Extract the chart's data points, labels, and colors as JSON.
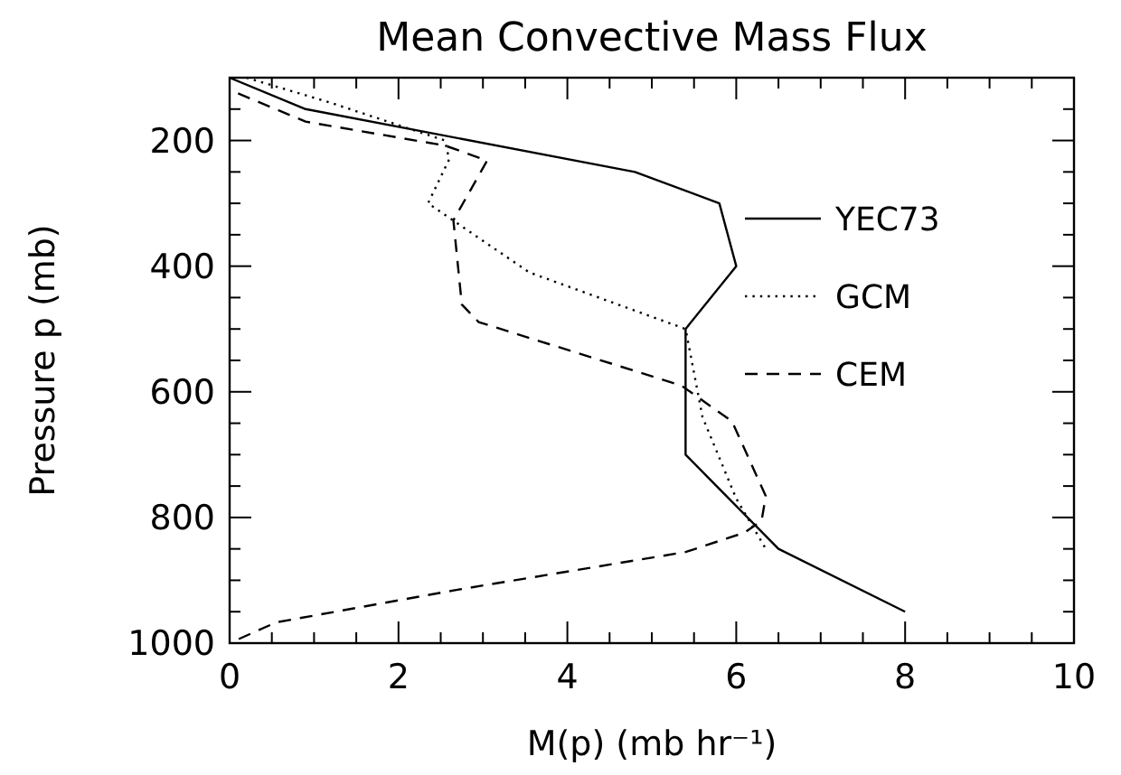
{
  "chart_data": {
    "type": "line",
    "title": "Mean Convective Mass Flux",
    "xlabel": "M(p) (mb hr⁻¹)",
    "ylabel": "Pressure p (mb)",
    "xlim": [
      0,
      10
    ],
    "ylim": [
      1000,
      100
    ],
    "xticks": [
      0,
      {
        "value": 0.5,
        "label": null
      },
      {
        "value": 1,
        "label": null
      },
      {
        "value": 1.5,
        "label": null
      },
      2,
      {
        "value": 2.5,
        "label": null
      },
      {
        "value": 3,
        "label": null
      },
      {
        "value": 3.5,
        "label": null
      },
      4,
      {
        "value": 4.5,
        "label": null
      },
      {
        "value": 5,
        "label": null
      },
      {
        "value": 5.5,
        "label": null
      },
      6,
      {
        "value": 6.5,
        "label": null
      },
      {
        "value": 7,
        "label": null
      },
      {
        "value": 7.5,
        "label": null
      },
      8,
      {
        "value": 8.5,
        "label": null
      },
      {
        "value": 9,
        "label": null
      },
      {
        "value": 9.5,
        "label": null
      },
      10
    ],
    "yticks": [
      {
        "value": 100,
        "label": null
      },
      {
        "value": 150,
        "label": null
      },
      200,
      {
        "value": 250,
        "label": null
      },
      {
        "value": 300,
        "label": null
      },
      {
        "value": 350,
        "label": null
      },
      400,
      {
        "value": 450,
        "label": null
      },
      {
        "value": 500,
        "label": null
      },
      {
        "value": 550,
        "label": null
      },
      600,
      {
        "value": 650,
        "label": null
      },
      {
        "value": 700,
        "label": null
      },
      {
        "value": 750,
        "label": null
      },
      800,
      {
        "value": 850,
        "label": null
      },
      {
        "value": 900,
        "label": null
      },
      {
        "value": 950,
        "label": null
      },
      1000
    ],
    "grid": false,
    "legend": "right",
    "series": [
      {
        "name": "YEC73",
        "color": "#000000",
        "line_style": "solid",
        "x": [
          0,
          0.9,
          4.8,
          5.8,
          6.0,
          5.4,
          5.4,
          6.5,
          8.0
        ],
        "values": [
          100,
          150,
          250,
          300,
          400,
          500,
          700,
          850,
          950
        ]
      },
      {
        "name": "GCM",
        "color": "#000000",
        "line_style": "dotted",
        "x": [
          0.2,
          1.2,
          2.55,
          2.6,
          2.35,
          3.55,
          5.4,
          5.6,
          6.0,
          6.35
        ],
        "values": [
          100,
          140,
          200,
          230,
          300,
          410,
          500,
          640,
          770,
          850
        ]
      },
      {
        "name": "CEM",
        "color": "#000000",
        "line_style": "dashed",
        "x": [
          0.1,
          0.9,
          2.55,
          3.05,
          2.65,
          2.75,
          2.95,
          5.35,
          5.95,
          6.35,
          6.3,
          6.1,
          5.4,
          2.7,
          0.55,
          0
        ],
        "values": [
          125,
          170,
          208,
          232,
          327,
          461,
          489,
          590,
          647,
          766,
          805,
          824,
          855,
          915,
          967,
          1000
        ]
      }
    ]
  }
}
